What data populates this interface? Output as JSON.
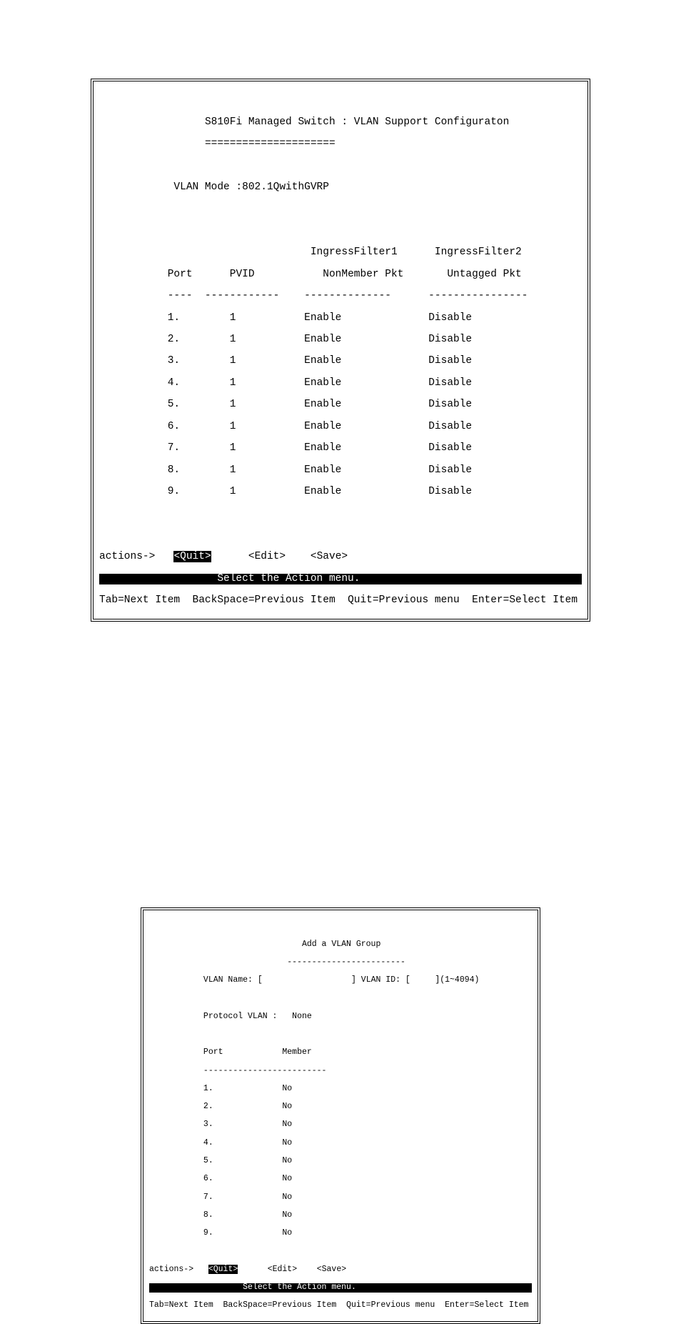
{
  "screen1": {
    "title": "S810Fi Managed Switch : VLAN Support Configuraton",
    "underline": "=====================",
    "vlan_mode_label": "VLAN Mode :",
    "vlan_mode_value": "802.1QwithGVRP",
    "columns": {
      "port": "Port",
      "pvid": "PVID",
      "if1a": "IngressFilter1",
      "if1b": "NonMember Pkt",
      "if2a": "IngressFilter2",
      "if2b": "Untagged Pkt"
    },
    "rows": [
      {
        "port": "1.",
        "pvid": "1",
        "if1": "Enable",
        "if2": "Disable"
      },
      {
        "port": "2.",
        "pvid": "1",
        "if1": "Enable",
        "if2": "Disable"
      },
      {
        "port": "3.",
        "pvid": "1",
        "if1": "Enable",
        "if2": "Disable"
      },
      {
        "port": "4.",
        "pvid": "1",
        "if1": "Enable",
        "if2": "Disable"
      },
      {
        "port": "5.",
        "pvid": "1",
        "if1": "Enable",
        "if2": "Disable"
      },
      {
        "port": "6.",
        "pvid": "1",
        "if1": "Enable",
        "if2": "Disable"
      },
      {
        "port": "7.",
        "pvid": "1",
        "if1": "Enable",
        "if2": "Disable"
      },
      {
        "port": "8.",
        "pvid": "1",
        "if1": "Enable",
        "if2": "Disable"
      },
      {
        "port": "9.",
        "pvid": "1",
        "if1": "Enable",
        "if2": "Disable"
      }
    ],
    "actions_label": "actions->",
    "quit": "<Quit>",
    "edit": "<Edit>",
    "save": "<Save>",
    "select_msg": "Select the Action menu.",
    "help": {
      "tab": "Tab=Next Item",
      "back": "BackSpace=Previous Item",
      "quit": "Quit=Previous menu",
      "enter": "Enter=Select Item"
    }
  },
  "screen2": {
    "title": "Add a VLAN Group",
    "underline": "------------------------",
    "vlan_name_label": "VLAN Name: [",
    "vlan_name_close": "]",
    "vlan_id_label": "VLAN ID: [",
    "vlan_id_close": "](1~4094)",
    "protocol_label": "Protocol VLAN :",
    "protocol_value": "None",
    "columns": {
      "port": "Port",
      "member": "Member"
    },
    "rows": [
      {
        "port": "1.",
        "member": "No"
      },
      {
        "port": "2.",
        "member": "No"
      },
      {
        "port": "3.",
        "member": "No"
      },
      {
        "port": "4.",
        "member": "No"
      },
      {
        "port": "5.",
        "member": "No"
      },
      {
        "port": "6.",
        "member": "No"
      },
      {
        "port": "7.",
        "member": "No"
      },
      {
        "port": "8.",
        "member": "No"
      },
      {
        "port": "9.",
        "member": "No"
      }
    ],
    "actions_label": "actions->",
    "quit": "<Quit>",
    "edit": "<Edit>",
    "save": "<Save>",
    "select_msg": "Select the Action menu.",
    "help": {
      "tab": "Tab=Next Item",
      "back": "BackSpace=Previous Item",
      "quit": "Quit=Previous menu",
      "enter": "Enter=Select Item"
    }
  }
}
